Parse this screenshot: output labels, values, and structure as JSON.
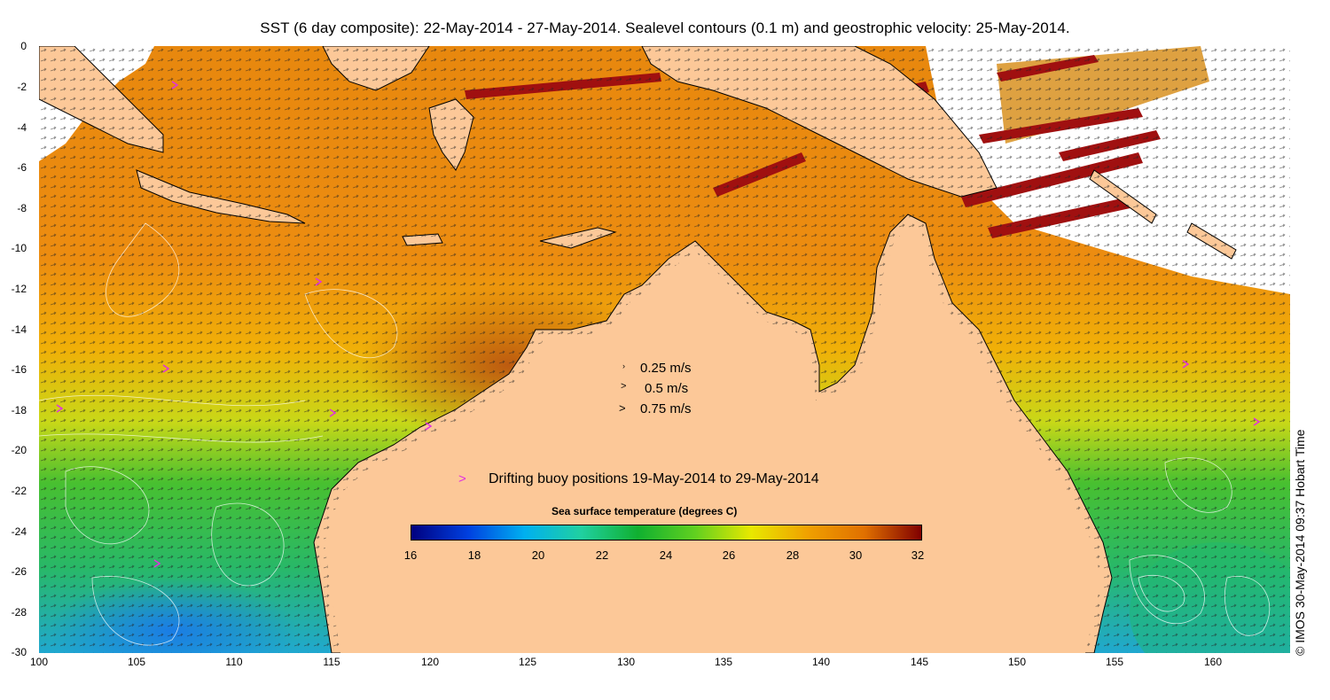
{
  "title": "SST (6 day composite): 22-May-2014 - 27-May-2014. Sealevel contours (0.1 m) and geostrophic velocity: 25-May-2014.",
  "credit": "© IMOS 30-May-2014 09:37 Hobart Time",
  "axes": {
    "y_ticks": [
      "0",
      "-2",
      "-4",
      "-6",
      "-8",
      "-10",
      "-12",
      "-14",
      "-16",
      "-18",
      "-20",
      "-22",
      "-24",
      "-26",
      "-28",
      "-30"
    ],
    "x_ticks": [
      "100",
      "105",
      "110",
      "115",
      "120",
      "125",
      "130",
      "135",
      "140",
      "145",
      "150",
      "155",
      "160"
    ]
  },
  "velocity_legend": [
    {
      "label": "0.25 m/s"
    },
    {
      "label": "0.5 m/s"
    },
    {
      "label": "0.75 m/s"
    }
  ],
  "buoy_legend": {
    "marker": ">",
    "label": "Drifting buoy positions 19-May-2014 to 29-May-2014",
    "color": "#e030e0"
  },
  "colorbar": {
    "title": "Sea surface temperature (degrees C)",
    "ticks": [
      "16",
      "18",
      "20",
      "22",
      "24",
      "26",
      "28",
      "30",
      "32"
    ],
    "stops": [
      "#000080",
      "#0040e0",
      "#00b0f0",
      "#20d0a0",
      "#10b030",
      "#60d020",
      "#e8e800",
      "#f0a000",
      "#e07000",
      "#800000"
    ]
  },
  "colors": {
    "land": "#fcc898",
    "missing": "#ffffff",
    "warm": "#e88a10",
    "hot": "#c85a10",
    "mid": "#f0c000",
    "cool_green": "#38b838",
    "cold_blue": "#20a0e0"
  }
}
